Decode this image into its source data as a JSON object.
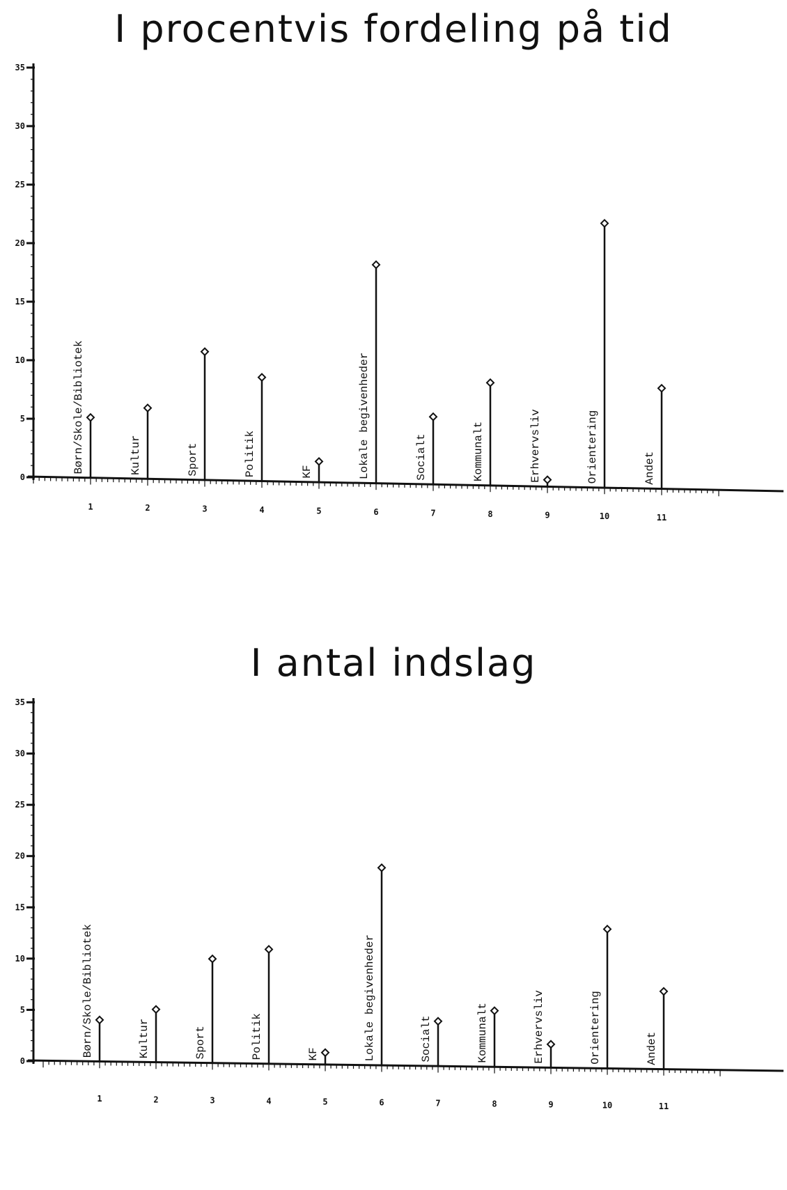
{
  "chart_data": [
    {
      "type": "stem",
      "title": "I procentvis fordeling på tid",
      "categories": [
        "Børn/Skole/Bibliotek",
        "Kultur",
        "Sport",
        "Politik",
        "KF",
        "Lokale begivenheder",
        "Socialt",
        "Kommunalt",
        "Erhvervsliv",
        "Orientering",
        "Andet"
      ],
      "x": [
        1,
        2,
        3,
        4,
        5,
        6,
        7,
        8,
        9,
        10,
        11
      ],
      "values": [
        5.2,
        6.1,
        11.0,
        8.9,
        1.8,
        18.7,
        5.8,
        8.8,
        0.6,
        22.6,
        8.6
      ],
      "yticks": [
        0,
        5,
        10,
        15,
        20,
        25,
        30,
        35
      ],
      "ylim": [
        0,
        35
      ],
      "xlim": [
        0,
        12
      ]
    },
    {
      "type": "stem",
      "title": "I antal indslag",
      "categories": [
        "Børn/Skole/Bibliotek",
        "Kultur",
        "Sport",
        "Politik",
        "KF",
        "Lokale begivenheder",
        "Socialt",
        "Kommunalt",
        "Erhvervsliv",
        "Orientering",
        "Andet"
      ],
      "x": [
        1,
        2,
        3,
        4,
        5,
        6,
        7,
        8,
        9,
        10,
        11
      ],
      "values": [
        4.1,
        5.2,
        10.2,
        11.2,
        1.2,
        19.3,
        4.4,
        5.5,
        2.3,
        13.6,
        7.6
      ],
      "yticks": [
        0,
        5,
        10,
        15,
        20,
        25,
        30,
        35
      ],
      "ylim": [
        0,
        35
      ],
      "xlim": [
        0,
        12
      ]
    }
  ]
}
